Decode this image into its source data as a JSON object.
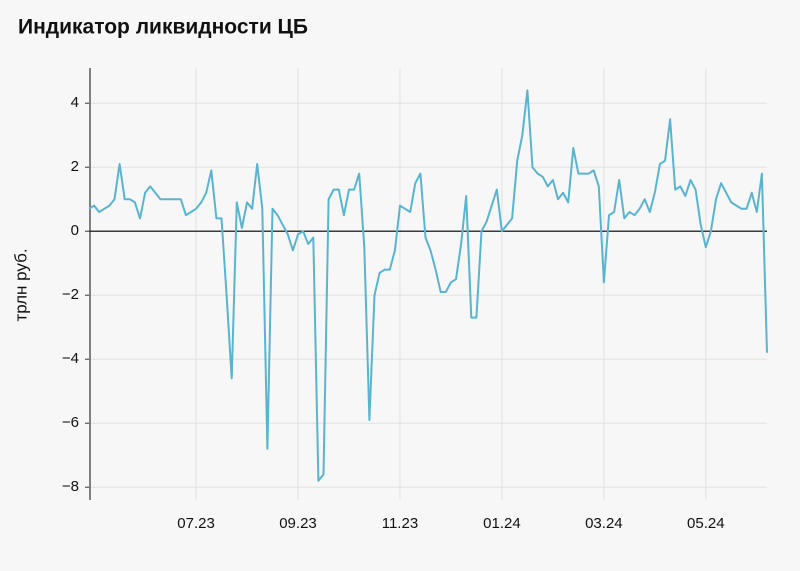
{
  "chart_data": {
    "type": "line",
    "title": "Индикатор ликвидности ЦБ",
    "y_label": "трлн руб.",
    "categories": [
      null,
      null,
      null,
      null,
      null,
      null,
      null,
      null,
      null,
      null,
      null,
      null,
      null,
      null,
      null,
      null,
      null,
      null,
      null,
      null,
      null,
      "07.23",
      null,
      null,
      null,
      null,
      null,
      null,
      null,
      null,
      null,
      null,
      null,
      null,
      null,
      null,
      null,
      null,
      null,
      null,
      null,
      "09.23",
      null,
      null,
      null,
      null,
      null,
      null,
      null,
      null,
      null,
      null,
      null,
      null,
      null,
      null,
      null,
      null,
      null,
      null,
      null,
      "11.23",
      null,
      null,
      null,
      null,
      null,
      null,
      null,
      null,
      null,
      null,
      null,
      null,
      null,
      null,
      null,
      null,
      null,
      null,
      null,
      "01.24",
      null,
      null,
      null,
      null,
      null,
      null,
      null,
      null,
      null,
      null,
      null,
      null,
      null,
      null,
      null,
      null,
      null,
      null,
      null,
      "03.24",
      null,
      null,
      null,
      null,
      null,
      null,
      null,
      null,
      null,
      null,
      null,
      null,
      null,
      null,
      null,
      null,
      null,
      null,
      null,
      "05.24",
      null,
      null,
      null,
      null,
      null,
      null,
      null,
      null,
      null,
      null,
      null,
      null
    ],
    "values": [
      0.7,
      0.8,
      0.6,
      0.7,
      0.8,
      1.0,
      2.1,
      1.0,
      1.0,
      0.9,
      0.4,
      1.2,
      1.4,
      1.2,
      1.0,
      1.0,
      1.0,
      1.0,
      1.0,
      0.5,
      0.6,
      0.7,
      0.9,
      1.2,
      1.9,
      0.4,
      0.4,
      -2.0,
      -4.6,
      0.9,
      0.1,
      0.9,
      0.7,
      2.1,
      0.7,
      -6.8,
      0.7,
      0.5,
      0.2,
      -0.1,
      -0.6,
      -0.1,
      0.0,
      -0.4,
      -0.2,
      -7.8,
      -7.6,
      1.0,
      1.3,
      1.3,
      0.5,
      1.3,
      1.3,
      1.8,
      -0.5,
      -5.9,
      -2.0,
      -1.3,
      -1.2,
      -1.2,
      -0.6,
      0.8,
      0.7,
      0.6,
      1.5,
      1.8,
      -0.2,
      -0.6,
      -1.2,
      -1.9,
      -1.9,
      -1.6,
      -1.5,
      -0.4,
      1.1,
      -2.7,
      -2.7,
      0.0,
      0.3,
      0.8,
      1.3,
      0.0,
      0.2,
      0.4,
      2.2,
      3.0,
      4.4,
      2.0,
      1.8,
      1.7,
      1.4,
      1.6,
      1.0,
      1.2,
      0.9,
      2.6,
      1.8,
      1.8,
      1.8,
      1.9,
      1.4,
      -1.6,
      0.5,
      0.6,
      1.6,
      0.4,
      0.6,
      0.5,
      0.7,
      1.0,
      0.6,
      1.2,
      2.1,
      2.2,
      3.5,
      1.3,
      1.4,
      1.1,
      1.6,
      1.3,
      0.2,
      -0.5,
      0.0,
      1.0,
      1.5,
      1.2,
      0.9,
      0.8,
      0.7,
      0.7,
      1.2,
      0.6,
      1.8,
      -3.8
    ],
    "color": "#5ab4d0",
    "ylim": [
      -8.4,
      5.1
    ],
    "yticks": [
      {
        "value": -8,
        "label": "−8"
      },
      {
        "value": -6,
        "label": "−6"
      },
      {
        "value": -4,
        "label": "−4"
      },
      {
        "value": -2,
        "label": "−2"
      },
      0,
      2,
      4
    ],
    "grid": true
  }
}
